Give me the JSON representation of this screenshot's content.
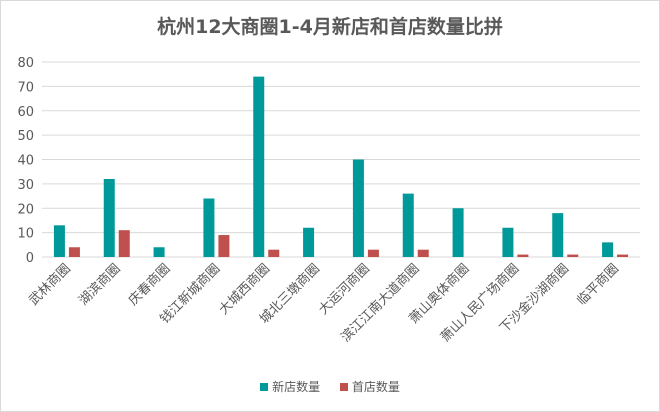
{
  "chart_data": {
    "type": "bar",
    "title": "杭州12大商圈1-4月新店和首店数量比拼",
    "categories": [
      "武林商圈",
      "湖滨商圈",
      "庆春商圈",
      "钱江新城商圈",
      "大城西商圈",
      "城北三墩商圈",
      "大运河商圈",
      "滨江江南大道商圈",
      "萧山奥体商圈",
      "萧山人民广场商圈",
      "下沙金沙湖商圈",
      "临平商圈"
    ],
    "series": [
      {
        "name": "新店数量",
        "color": "#009999",
        "values": [
          13,
          32,
          4,
          24,
          74,
          12,
          40,
          26,
          20,
          12,
          18,
          6
        ]
      },
      {
        "name": "首店数量",
        "color": "#c0504d",
        "values": [
          4,
          11,
          0,
          9,
          3,
          0,
          3,
          3,
          0,
          1,
          1,
          1
        ]
      }
    ],
    "ylim": [
      0,
      80
    ],
    "yticks": [
      0,
      10,
      20,
      30,
      40,
      50,
      60,
      70,
      80
    ],
    "grid": true,
    "legend": "bottom"
  }
}
